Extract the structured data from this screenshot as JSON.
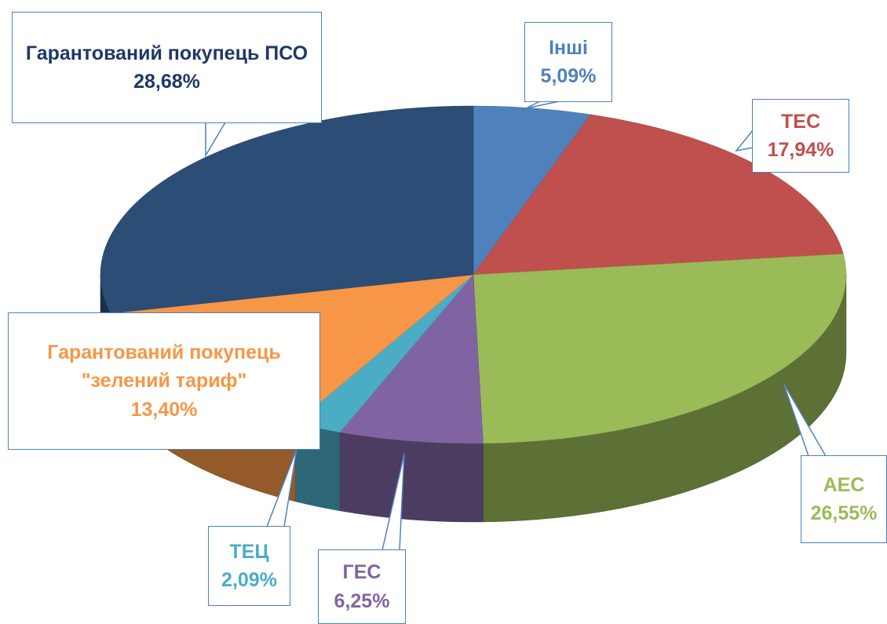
{
  "chart_data": {
    "type": "pie",
    "three_d": true,
    "categories": [
      "Інші",
      "ТЕС",
      "АЕС",
      "ГЕС",
      "ТЕЦ",
      "Гарантований покупець \"зелений тариф\"",
      "Гарантований покупець ПСО"
    ],
    "values": [
      5.09,
      17.94,
      26.55,
      6.25,
      2.09,
      13.4,
      28.68
    ],
    "value_labels": [
      "5,09%",
      "17,94%",
      "26,55%",
      "6,25%",
      "2,09%",
      "13,40%",
      "28,68%"
    ],
    "colors": [
      "#4f81bd",
      "#c0504d",
      "#9bbb59",
      "#8064a2",
      "#4bacc6",
      "#f79646",
      "#2c4d75"
    ]
  }
}
